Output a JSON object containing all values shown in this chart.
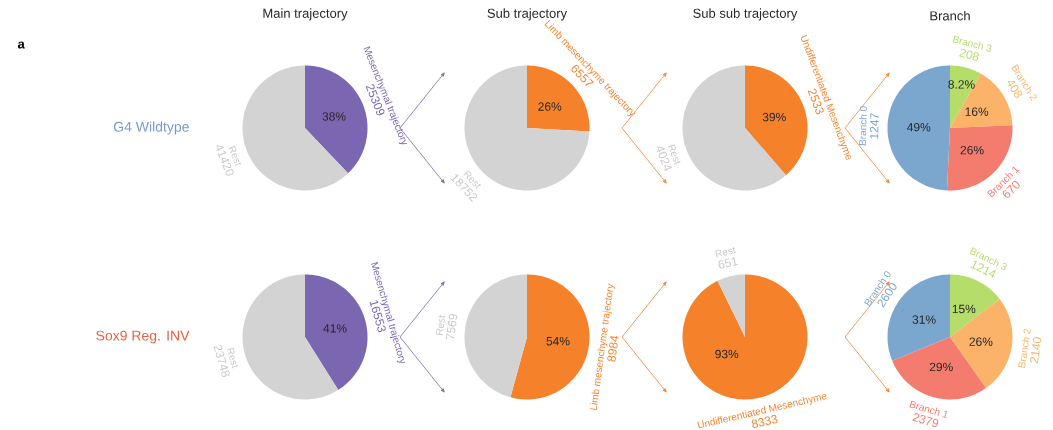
{
  "chart_data": [
    {
      "type": "pie",
      "title": "Main trajectory",
      "ylabel": "G4 Wildtype",
      "categories": [
        "Mesenchymal trajectory",
        "Rest"
      ],
      "values": [
        25309,
        41420
      ],
      "colors": [
        "#7b66b2",
        "#d3d3d3"
      ],
      "value_labels": [
        "25309",
        "41420"
      ],
      "annotations": [
        "a",
        {
          "text": "38%",
          "x": "Mesenchymal trajectory"
        }
      ]
    },
    {
      "type": "pie",
      "title": "Sub trajectory",
      "categories": [
        "Limb mesenchyme trajectory",
        "Rest"
      ],
      "values": [
        6557,
        18752
      ],
      "colors": [
        "#f5822a",
        "#d3d3d3"
      ],
      "value_labels": [
        "6557",
        "18752"
      ],
      "annotations": [
        {
          "text": "26%",
          "x": "Limb mesenchyme trajectory"
        }
      ]
    },
    {
      "type": "pie",
      "title": "Sub sub trajectory",
      "categories": [
        "Undifferentiated Mesenchyme",
        "Rest"
      ],
      "values": [
        2533,
        4024
      ],
      "colors": [
        "#f5822a",
        "#d3d3d3"
      ],
      "value_labels": [
        "2533",
        "4024"
      ],
      "annotations": [
        {
          "text": "39%",
          "x": "Undifferentiated Mesenchyme"
        }
      ]
    },
    {
      "type": "pie",
      "title": "Branch",
      "categories": [
        "Branch 3",
        "Branch 2",
        "Branch 1",
        "Branch 0"
      ],
      "values": [
        208,
        408,
        670,
        1247
      ],
      "colors": [
        "#b5dd6a",
        "#fbb36a",
        "#f47c6f",
        "#7ba7cf"
      ],
      "value_labels": [
        "208",
        "408",
        "670",
        "1247"
      ],
      "annotations": [
        {
          "text": "8.2%",
          "x": "Branch 3"
        },
        {
          "text": "16%",
          "x": "Branch 2"
        },
        {
          "text": "26%",
          "x": "Branch 1"
        },
        {
          "text": "49%",
          "x": "Branch 0"
        }
      ]
    },
    {
      "type": "pie",
      "ylabel": "Sox9 Reg. INV",
      "categories": [
        "Mesenchymal trajectory",
        "Rest"
      ],
      "values": [
        16553,
        23748
      ],
      "colors": [
        "#7b66b2",
        "#d3d3d3"
      ],
      "value_labels": [
        "16553",
        "23748"
      ],
      "annotations": [
        {
          "text": "41%",
          "x": "Mesenchymal trajectory"
        }
      ]
    },
    {
      "type": "pie",
      "categories": [
        "Limb mesenchyme trajectory",
        "Rest"
      ],
      "values": [
        8984,
        7569
      ],
      "colors": [
        "#f5822a",
        "#d3d3d3"
      ],
      "value_labels": [
        "8984",
        "7569"
      ],
      "annotations": [
        {
          "text": "54%",
          "x": "Limb mesenchyme trajectory"
        }
      ]
    },
    {
      "type": "pie",
      "categories": [
        "Undifferentiated Mesenchyme",
        "Rest"
      ],
      "values": [
        8333,
        651
      ],
      "colors": [
        "#f5822a",
        "#d3d3d3"
      ],
      "value_labels": [
        "8333",
        "651"
      ],
      "annotations": [
        {
          "text": "93%",
          "x": "Undifferentiated Mesenchyme"
        }
      ]
    },
    {
      "type": "pie",
      "categories": [
        "Branch 3",
        "Branch 2",
        "Branch 1",
        "Branch 0"
      ],
      "values": [
        1214,
        2140,
        2379,
        2600
      ],
      "colors": [
        "#b5dd6a",
        "#fbb36a",
        "#f47c6f",
        "#7ba7cf"
      ],
      "value_labels": [
        "1214",
        "2140",
        "2379",
        "2600"
      ],
      "annotations": [
        {
          "text": "15%",
          "x": "Branch 3"
        },
        {
          "text": "26%",
          "x": "Branch 2"
        },
        {
          "text": "29%",
          "x": "Branch 1"
        },
        {
          "text": "31%",
          "x": "Branch 0"
        }
      ]
    }
  ]
}
